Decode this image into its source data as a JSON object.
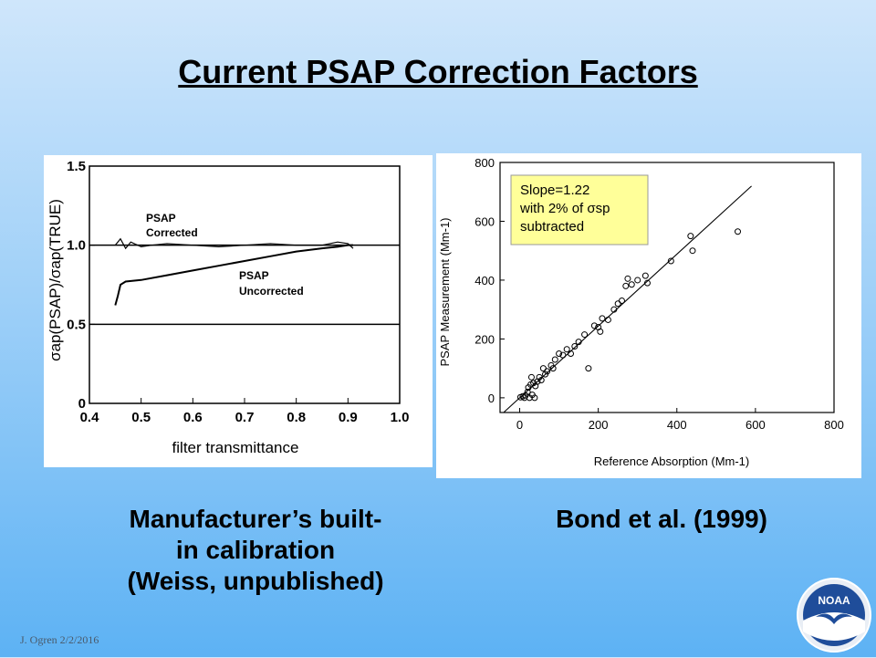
{
  "slide": {
    "title": "Current PSAP Correction Factors",
    "left_caption": [
      "Manufacturer’s built-",
      "in calibration",
      "(Weiss, unpublished)"
    ],
    "right_caption": "Bond et al. (1999)",
    "footer": "J. Ogren  2/2/2016",
    "logo_text": "NOAA"
  },
  "chart_data": [
    {
      "type": "line",
      "title": "",
      "xlabel": "filter transmittance",
      "ylabel": "σap(PSAP)/σap(TRUE)",
      "xlim": [
        0.4,
        1.0
      ],
      "ylim": [
        0,
        1.5
      ],
      "xticks": [
        "0.4",
        "0.5",
        "0.6",
        "0.7",
        "0.8",
        "0.9",
        "1.0"
      ],
      "yticks": [
        "0",
        "0.5",
        "1.0",
        "1.5"
      ],
      "reference_lines": [
        1.0,
        0.5
      ],
      "series": [
        {
          "name": "PSAP Corrected",
          "x": [
            0.45,
            0.46,
            0.47,
            0.48,
            0.5,
            0.52,
            0.55,
            0.6,
            0.65,
            0.7,
            0.75,
            0.8,
            0.85,
            0.88,
            0.9,
            0.91
          ],
          "y": [
            1.0,
            1.04,
            0.98,
            1.02,
            0.99,
            1.0,
            1.01,
            1.0,
            0.99,
            1.0,
            1.01,
            1.0,
            1.0,
            1.02,
            1.01,
            0.98
          ]
        },
        {
          "name": "PSAP Uncorrected",
          "x": [
            0.45,
            0.455,
            0.46,
            0.47,
            0.5,
            0.55,
            0.6,
            0.65,
            0.7,
            0.75,
            0.8,
            0.85,
            0.88,
            0.9,
            0.91
          ],
          "y": [
            0.62,
            0.68,
            0.75,
            0.77,
            0.78,
            0.81,
            0.84,
            0.87,
            0.9,
            0.93,
            0.96,
            0.98,
            0.99,
            1.0,
            1.0
          ]
        }
      ],
      "annotations": [
        "PSAP\nCorrected",
        "PSAP\nUncorrected"
      ]
    },
    {
      "type": "scatter",
      "title": "",
      "xlabel": "Reference Absorption (Mm-1)",
      "ylabel": "PSAP Measurement (Mm-1)",
      "xlim": [
        -50,
        800
      ],
      "ylim": [
        -50,
        800
      ],
      "xticks": [
        "0",
        "200",
        "400",
        "600",
        "800"
      ],
      "yticks": [
        "0",
        "200",
        "400",
        "600",
        "800"
      ],
      "fit_line": {
        "slope": 1.22,
        "intercept": 0,
        "x": [
          -40,
          590
        ]
      },
      "annotation": [
        "Slope=1.22",
        "with 2% of σsp",
        "subtracted"
      ],
      "points": [
        [
          2,
          2
        ],
        [
          8,
          5
        ],
        [
          12,
          0
        ],
        [
          15,
          8
        ],
        [
          20,
          20
        ],
        [
          22,
          35
        ],
        [
          25,
          0
        ],
        [
          28,
          45
        ],
        [
          30,
          70
        ],
        [
          32,
          10
        ],
        [
          35,
          50
        ],
        [
          38,
          0
        ],
        [
          40,
          40
        ],
        [
          45,
          55
        ],
        [
          50,
          70
        ],
        [
          55,
          60
        ],
        [
          60,
          100
        ],
        [
          65,
          80
        ],
        [
          70,
          90
        ],
        [
          80,
          110
        ],
        [
          85,
          100
        ],
        [
          90,
          130
        ],
        [
          100,
          150
        ],
        [
          110,
          145
        ],
        [
          120,
          165
        ],
        [
          130,
          150
        ],
        [
          140,
          175
        ],
        [
          150,
          190
        ],
        [
          165,
          215
        ],
        [
          175,
          100
        ],
        [
          190,
          245
        ],
        [
          200,
          240
        ],
        [
          205,
          225
        ],
        [
          210,
          270
        ],
        [
          225,
          265
        ],
        [
          240,
          300
        ],
        [
          250,
          320
        ],
        [
          260,
          330
        ],
        [
          270,
          380
        ],
        [
          275,
          405
        ],
        [
          285,
          385
        ],
        [
          300,
          400
        ],
        [
          320,
          415
        ],
        [
          325,
          390
        ],
        [
          385,
          465
        ],
        [
          435,
          550
        ],
        [
          440,
          500
        ],
        [
          555,
          565
        ]
      ]
    }
  ],
  "colors": {
    "bg_top": "#cfe6fb",
    "bg_bottom": "#5db2f4",
    "annotation_box": "#ffff99"
  }
}
